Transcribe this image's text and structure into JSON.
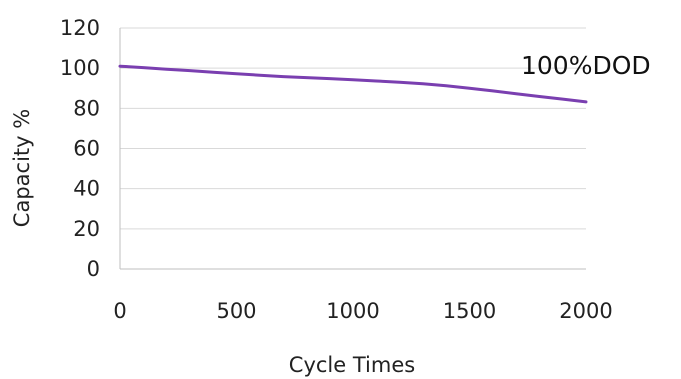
{
  "chart_data": {
    "type": "line",
    "title": "",
    "xlabel": "Cycle Times",
    "ylabel": "Capacity %",
    "xlim": [
      0,
      2000
    ],
    "ylim": [
      0,
      120
    ],
    "x_ticks": [
      0,
      500,
      1000,
      1500,
      2000
    ],
    "y_ticks": [
      0,
      20,
      40,
      60,
      80,
      100,
      120
    ],
    "grid": "horizontal",
    "annotations": [
      {
        "text": "100%DOD"
      }
    ],
    "series": [
      {
        "name": "100%DOD",
        "color": "#7a3fb0",
        "x": [
          0,
          100,
          200,
          300,
          400,
          500,
          600,
          700,
          800,
          900,
          1000,
          1100,
          1200,
          1300,
          1400,
          1500,
          1600,
          1700,
          1800,
          1900,
          2000
        ],
        "y": [
          101,
          100.3,
          99.5,
          98.8,
          98,
          97.2,
          96.5,
          95.8,
          95.3,
          94.8,
          94.2,
          93.6,
          93,
          92.2,
          91.2,
          90,
          88.7,
          87.3,
          85.9,
          84.6,
          83.2
        ]
      }
    ]
  }
}
